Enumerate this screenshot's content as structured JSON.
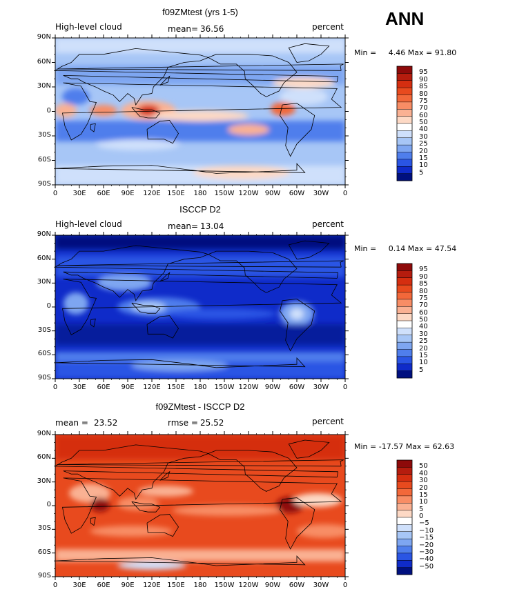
{
  "season": "ANN",
  "chart_data": [
    {
      "type": "heatmap",
      "title": "f09ZMtest (yrs 1-5)",
      "left_label": "High-level cloud",
      "stat_label": "mean=",
      "stat_value": "36.56",
      "units": "percent",
      "min_label": "Min =",
      "min_value": "4.46",
      "max_label": "Max =",
      "max_value": "91.80",
      "y_ticks": [
        "90N",
        "60N",
        "30N",
        "0",
        "30S",
        "60S",
        "90S"
      ],
      "x_ticks": [
        "0",
        "30E",
        "60E",
        "90E",
        "120E",
        "150E",
        "180",
        "150W",
        "120W",
        "90W",
        "60W",
        "30W",
        "0"
      ],
      "colorbar_levels": [
        "95",
        "90",
        "85",
        "80",
        "75",
        "70",
        "60",
        "50",
        "40",
        "30",
        "25",
        "20",
        "15",
        "10",
        "5"
      ],
      "colorbar_colors": [
        "#8e0a0a",
        "#b51c0e",
        "#d52e10",
        "#e84a1e",
        "#f2683a",
        "#f88d65",
        "#fab193",
        "#fdd9c5",
        "#ffffff",
        "#cfe0fb",
        "#a7c6f6",
        "#7ea6f1",
        "#4f7eec",
        "#2a55e4",
        "#0f2bc9",
        "#00107f"
      ]
    },
    {
      "type": "heatmap",
      "title": "ISCCP D2",
      "left_label": "High-level cloud",
      "stat_label": "mean=",
      "stat_value": "13.04",
      "units": "percent",
      "min_label": "Min =",
      "min_value": "0.14",
      "max_label": "Max =",
      "max_value": "47.54",
      "y_ticks": [
        "90N",
        "60N",
        "30N",
        "0",
        "30S",
        "60S",
        "90S"
      ],
      "x_ticks": [
        "0",
        "30E",
        "60E",
        "90E",
        "120E",
        "150E",
        "180",
        "150W",
        "120W",
        "90W",
        "60W",
        "30W",
        "0"
      ],
      "colorbar_levels": [
        "95",
        "90",
        "85",
        "80",
        "75",
        "70",
        "60",
        "50",
        "40",
        "30",
        "25",
        "20",
        "15",
        "10",
        "5"
      ],
      "colorbar_colors": [
        "#8e0a0a",
        "#b51c0e",
        "#d52e10",
        "#e84a1e",
        "#f2683a",
        "#f88d65",
        "#fab193",
        "#fdd9c5",
        "#ffffff",
        "#cfe0fb",
        "#a7c6f6",
        "#7ea6f1",
        "#4f7eec",
        "#2a55e4",
        "#0f2bc9",
        "#00107f"
      ]
    },
    {
      "type": "heatmap",
      "title": "f09ZMtest - ISCCP D2",
      "left_label": "mean =",
      "left_value": "23.52",
      "stat_label": "rmse =",
      "stat_value": "25.52",
      "units": "percent",
      "min_label": "Min =",
      "min_value": "-17.57",
      "max_label": "Max =",
      "max_value": "62.63",
      "y_ticks": [
        "90N",
        "60N",
        "30N",
        "0",
        "30S",
        "60S",
        "90S"
      ],
      "x_ticks": [
        "0",
        "30E",
        "60E",
        "90E",
        "120E",
        "150E",
        "180",
        "150W",
        "120W",
        "90W",
        "60W",
        "30W",
        "0"
      ],
      "colorbar_levels": [
        "50",
        "40",
        "30",
        "20",
        "15",
        "10",
        "5",
        "0",
        "−5",
        "−10",
        "−15",
        "−20",
        "−30",
        "−40",
        "−50"
      ],
      "colorbar_colors": [
        "#8e0a0a",
        "#b51c0e",
        "#d52e10",
        "#e84a1e",
        "#f2683a",
        "#f88d65",
        "#fab193",
        "#fdd9c5",
        "#ffffff",
        "#cfe0fb",
        "#a7c6f6",
        "#7ea6f1",
        "#4f7eec",
        "#2a55e4",
        "#0f2bc9",
        "#00107f"
      ]
    }
  ]
}
